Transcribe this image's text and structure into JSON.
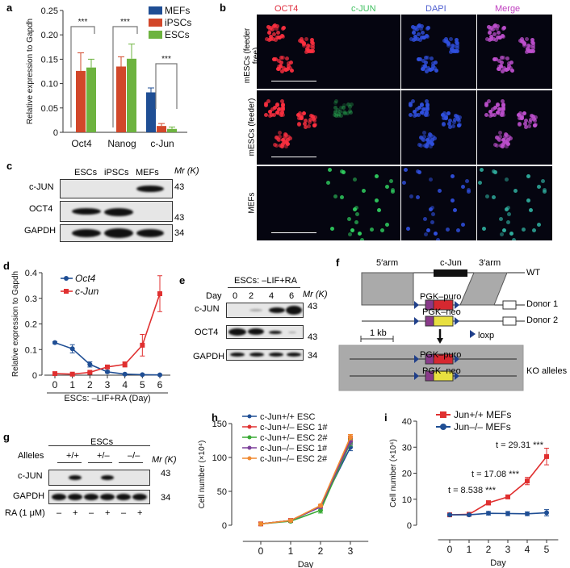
{
  "panels": {
    "a": "a",
    "b": "b",
    "c": "c",
    "d": "d",
    "e": "e",
    "f": "f",
    "g": "g",
    "h": "h",
    "i": "i"
  },
  "colors": {
    "mef": "#1f4e94",
    "ipsc": "#d2472a",
    "esc": "#6db33f",
    "red": "#e03030",
    "blue": "#1f4e94",
    "green": "#3aaa35",
    "purple": "#7b3f9a",
    "orange": "#f08a30"
  },
  "chart_data": [
    {
      "id": "a",
      "type": "bar",
      "ylabel": "Relative expression to Gapdh",
      "ylim": [
        0,
        0.25
      ],
      "yticks": [
        "0",
        "0.05",
        "0.10",
        "0.15",
        "0.20",
        "0.25"
      ],
      "categories": [
        "Oct4",
        "Nanog",
        "c-Jun"
      ],
      "series": [
        {
          "name": "MEFs",
          "values": [
            0,
            0,
            0.082
          ],
          "errors": [
            0,
            0,
            0.009
          ]
        },
        {
          "name": "iPSCs",
          "values": [
            0.126,
            0.135,
            0.013
          ],
          "errors": [
            0.037,
            0.02,
            0.005
          ]
        },
        {
          "name": "ESCs",
          "values": [
            0.133,
            0.151,
            0.007
          ],
          "errors": [
            0.017,
            0.03,
            0.004
          ]
        }
      ],
      "annotations": [
        "***",
        "***",
        "***"
      ]
    },
    {
      "id": "d",
      "type": "line",
      "ylabel": "Relative expression to Gapdh",
      "xlabel": "ESCs: –LIF+RA  (Day)",
      "ylim": [
        0,
        0.4
      ],
      "yticks": [
        "0",
        "0.1",
        "0.2",
        "0.3",
        "0.4"
      ],
      "x": [
        0,
        1,
        2,
        3,
        4,
        5,
        6
      ],
      "series": [
        {
          "name": "Oct4",
          "values": [
            0.127,
            0.103,
            0.042,
            0.013,
            0.004,
            0.002,
            0.001
          ],
          "errors": [
            0.004,
            0.016,
            0.01,
            0.004,
            0.002,
            0.001,
            0.001
          ]
        },
        {
          "name": "c-Jun",
          "values": [
            0.006,
            0.004,
            0.011,
            0.032,
            0.042,
            0.117,
            0.318
          ],
          "errors": [
            0.002,
            0.002,
            0.003,
            0.006,
            0.01,
            0.042,
            0.07
          ]
        }
      ]
    },
    {
      "id": "h",
      "type": "line",
      "ylabel": "Cell number (×10⁴)",
      "xlabel": "Day",
      "ylim": [
        0,
        150
      ],
      "yticks": [
        "0",
        "50",
        "100",
        "150"
      ],
      "x": [
        0,
        1,
        2,
        3
      ],
      "series": [
        {
          "name": "c-Jun+/+ ESC",
          "values": [
            2,
            7,
            27,
            115
          ],
          "errors": [
            1,
            1,
            2,
            5
          ]
        },
        {
          "name": "c-Jun+/– ESC 1#",
          "values": [
            2,
            7,
            28,
            128
          ],
          "errors": [
            1,
            1,
            2,
            4
          ]
        },
        {
          "name": "c-Jun+/– ESC 2#",
          "values": [
            2,
            6,
            22,
            122
          ],
          "errors": [
            1,
            1,
            4,
            5
          ]
        },
        {
          "name": "c-Jun–/– ESC 1#",
          "values": [
            2,
            7,
            27,
            124
          ],
          "errors": [
            1,
            1,
            2,
            5
          ]
        },
        {
          "name": "c-Jun–/– ESC 2#",
          "values": [
            2,
            7,
            29,
            130
          ],
          "errors": [
            1,
            1,
            2,
            4
          ]
        }
      ]
    },
    {
      "id": "i",
      "type": "line",
      "ylabel": "Cell number (×10⁴)",
      "xlabel": "Day",
      "ylim": [
        0,
        40
      ],
      "yticks": [
        "0",
        "10",
        "20",
        "30",
        "40"
      ],
      "x": [
        0,
        1,
        2,
        3,
        4,
        5
      ],
      "series": [
        {
          "name": "Jun+/+ MEFs",
          "values": [
            4,
            4.2,
            8.6,
            10.9,
            17,
            26.4
          ],
          "errors": [
            0.3,
            0.3,
            0.8,
            0.7,
            1.4,
            3.2
          ]
        },
        {
          "name": "Jun–/– MEFs",
          "values": [
            4,
            4,
            4.6,
            4.5,
            4.4,
            4.8
          ],
          "errors": [
            0.3,
            0.3,
            0.7,
            0.8,
            0.7,
            1.2
          ]
        }
      ],
      "annotations": [
        "t = 8.538 ***",
        "t = 17.08 ***",
        "t = 29.31 ***"
      ]
    }
  ],
  "b": {
    "columns": [
      "OCT4",
      "c-JUN",
      "DAPI",
      "Merge"
    ],
    "rows": [
      "mESCs (feeder free)",
      "mESCs (feeder)",
      "MEFs"
    ]
  },
  "c": {
    "lanes": [
      "ESCs",
      "iPSCs",
      "MEFs"
    ],
    "rows": [
      "c-JUN",
      "OCT4",
      "GAPDH"
    ],
    "mr": "Mr (K)",
    "markers": [
      "43",
      "43",
      "34"
    ]
  },
  "e": {
    "header": "ESCs: –LIF+RA",
    "day_label": "Day",
    "days": [
      "0",
      "2",
      "4",
      "6"
    ],
    "rows": [
      "c-JUN",
      "OCT4",
      "GAPDH"
    ],
    "mr": "Mr (K)",
    "markers": [
      "43",
      "43",
      "34"
    ]
  },
  "f": {
    "arm5": "5′arm",
    "cjun": "c-Jun",
    "arm3": "3′arm",
    "wt": "WT",
    "donor1": "Donor 1",
    "donor2": "Donor 2",
    "puro": "PGK–puro",
    "neo": "PGK–neo",
    "scale": "1 kb",
    "loxp": "loxp",
    "ko": "KO alleles"
  },
  "g": {
    "header": "ESCs",
    "alleles_label": "Alleles",
    "alleles": [
      "+/+",
      "+/–",
      "–/–"
    ],
    "rows": [
      "c-JUN",
      "GAPDH"
    ],
    "mr": "Mr (K)",
    "markers": [
      "43",
      "34"
    ],
    "ra_label": "RA (1 μM)",
    "ra": [
      "–",
      "+",
      "–",
      "+",
      "–",
      "+"
    ]
  }
}
